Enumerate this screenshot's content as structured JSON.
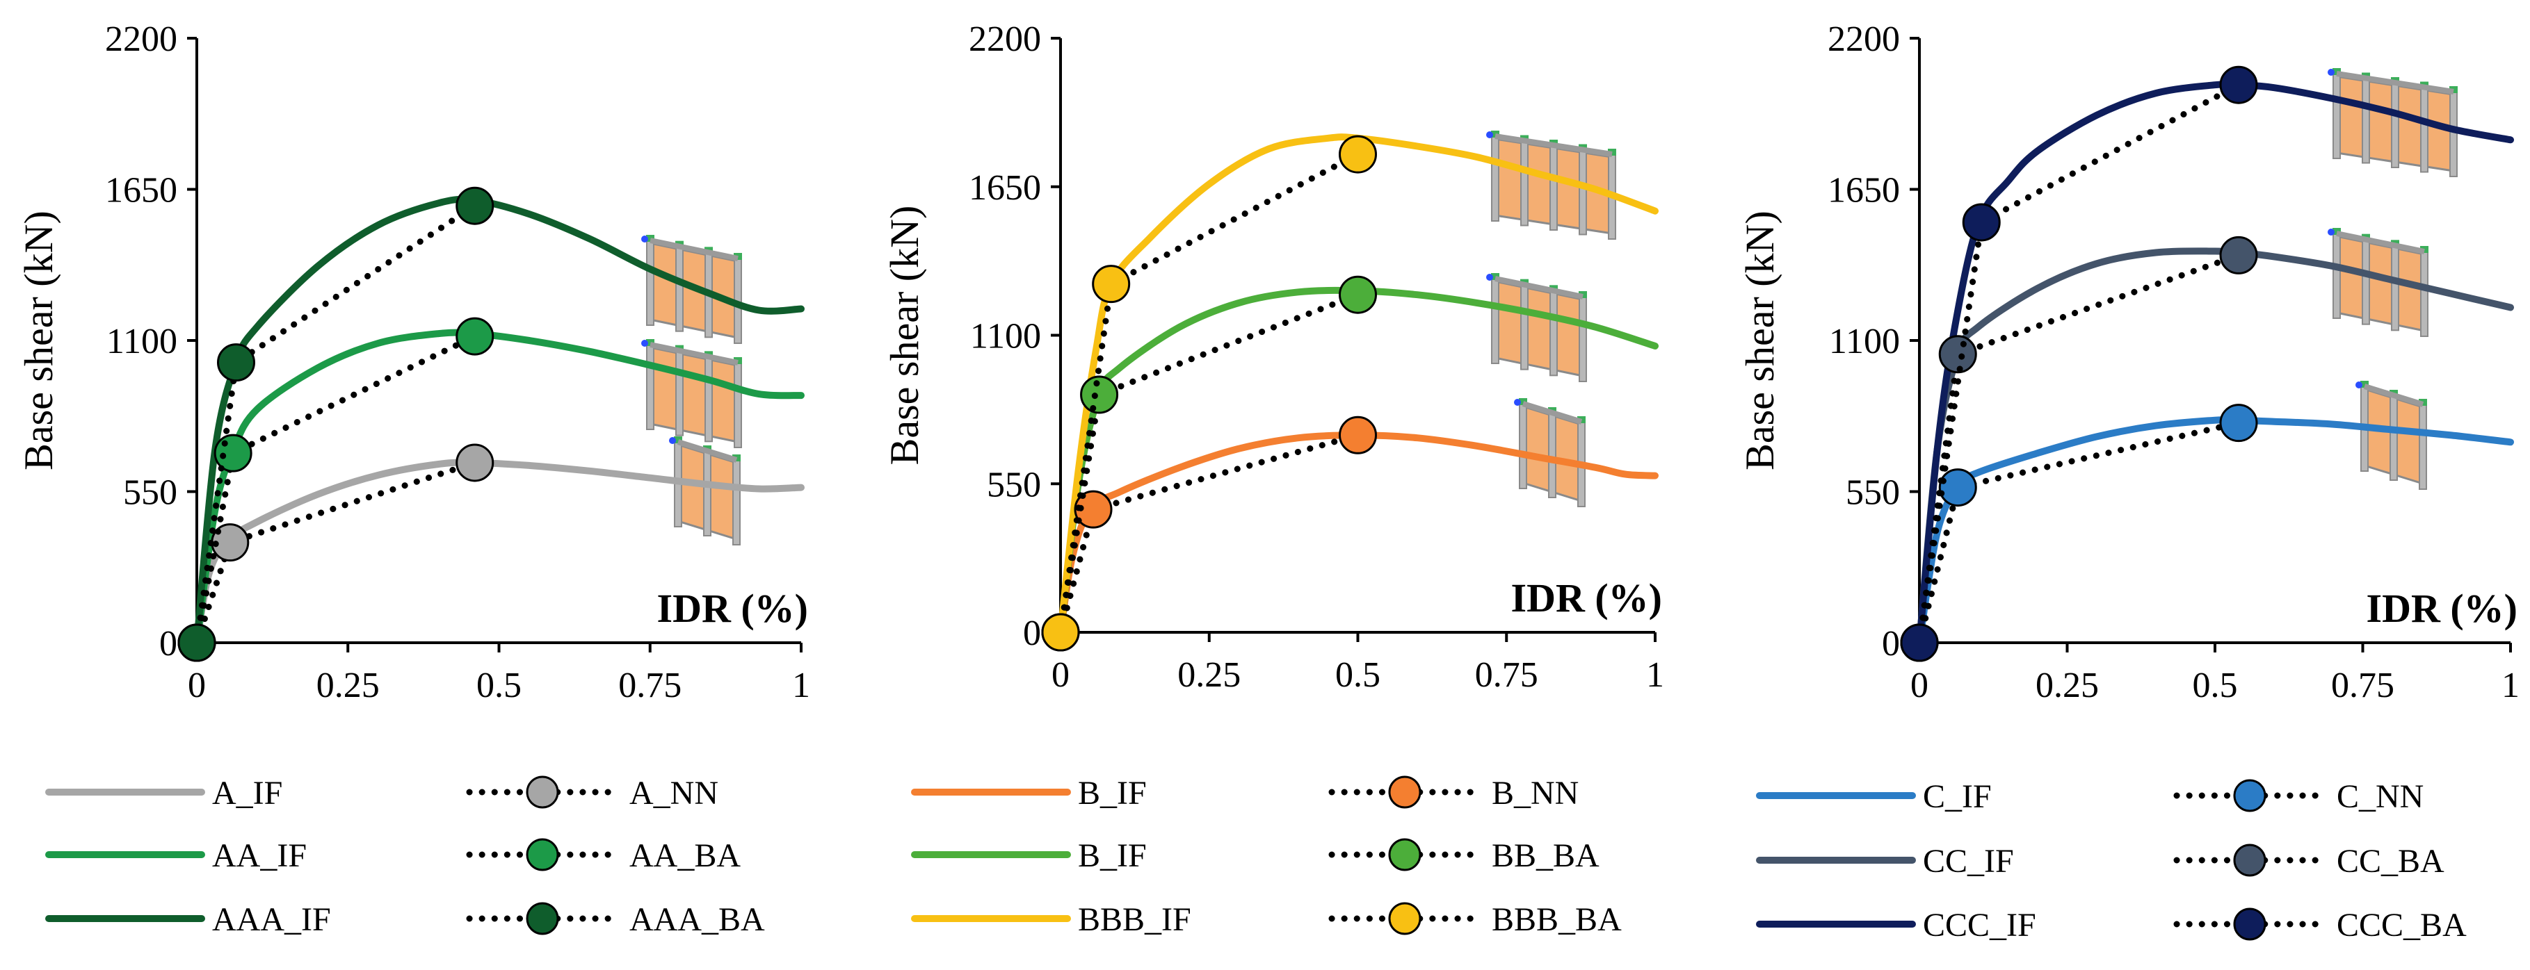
{
  "colors": {
    "A": "#a6a6a6",
    "AA": "#1c9a48",
    "AAA": "#0f5d2c",
    "B": "#f47f30",
    "BB": "#4cae3a",
    "BBB": "#f8c013",
    "C": "#2b7cc6",
    "CC": "#44546a",
    "CCC": "#0e1d5b",
    "wall": "#f4ae72",
    "frame": "#b8b8b8"
  },
  "chart_data": [
    {
      "type": "line",
      "ylabel": "Base shear (kN)",
      "xlabel": "IDR (%)",
      "xlim": [
        0,
        1
      ],
      "ylim": [
        0,
        2200
      ],
      "xticks": [
        "0",
        "0.25",
        "0.5",
        "0.75",
        "1"
      ],
      "yticks": [
        "0",
        "550",
        "1100",
        "1650",
        "2200"
      ],
      "series": [
        {
          "name": "A_IF",
          "style": "solid",
          "color": "A",
          "x": [
            0,
            0.02,
            0.05,
            0.1,
            0.2,
            0.3,
            0.4,
            0.46,
            0.55,
            0.65,
            0.75,
            0.85,
            0.93,
            1.0
          ],
          "y": [
            0,
            250,
            370,
            440,
            540,
            610,
            650,
            655,
            645,
            625,
            600,
            575,
            560,
            565
          ]
        },
        {
          "name": "A_NN",
          "style": "dotted",
          "color": "A",
          "x": [
            0,
            0.055,
            0.46
          ],
          "y": [
            0,
            365,
            655
          ]
        },
        {
          "name": "AA_IF",
          "style": "solid",
          "color": "AA",
          "x": [
            0,
            0.03,
            0.06,
            0.1,
            0.2,
            0.3,
            0.4,
            0.46,
            0.55,
            0.65,
            0.75,
            0.85,
            0.93,
            1.0
          ],
          "y": [
            0,
            480,
            700,
            850,
            1000,
            1090,
            1125,
            1125,
            1100,
            1060,
            1010,
            955,
            905,
            900
          ]
        },
        {
          "name": "AA_BA",
          "style": "dotted",
          "color": "AA",
          "x": [
            0,
            0.06,
            0.46
          ],
          "y": [
            0,
            690,
            1115
          ]
        },
        {
          "name": "AAA_IF",
          "style": "solid",
          "color": "AAA",
          "x": [
            0,
            0.03,
            0.065,
            0.1,
            0.2,
            0.3,
            0.4,
            0.46,
            0.55,
            0.65,
            0.75,
            0.85,
            0.93,
            1.0
          ],
          "y": [
            0,
            700,
            1020,
            1150,
            1370,
            1520,
            1600,
            1610,
            1560,
            1470,
            1360,
            1270,
            1210,
            1215
          ]
        },
        {
          "name": "AAA_BA",
          "style": "dotted",
          "color": "AAA",
          "x": [
            0,
            0.065,
            0.46
          ],
          "y": [
            0,
            1020,
            1590
          ]
        }
      ],
      "legend": [
        {
          "label": "A_IF",
          "style": "solid",
          "color": "A"
        },
        {
          "label": "A_NN",
          "style": "dotted",
          "color": "A"
        },
        {
          "label": "AA_IF",
          "style": "solid",
          "color": "AA"
        },
        {
          "label": "AA_BA",
          "style": "dotted",
          "color": "AA"
        },
        {
          "label": "AAA_IF",
          "style": "solid",
          "color": "AAA"
        },
        {
          "label": "AAA_BA",
          "style": "dotted",
          "color": "AAA"
        }
      ]
    },
    {
      "type": "line",
      "ylabel": "Base shear (kN)",
      "xlabel": "IDR (%)",
      "xlim": [
        0,
        1
      ],
      "ylim": [
        0,
        2200
      ],
      "xticks": [
        "0",
        "0.25",
        "0.5",
        "0.75",
        "1"
      ],
      "yticks": [
        "0",
        "550",
        "1100",
        "1650",
        "2200"
      ],
      "series": [
        {
          "name": "B_IF",
          "style": "solid",
          "color": "B",
          "x": [
            0,
            0.02,
            0.05,
            0.1,
            0.2,
            0.3,
            0.4,
            0.5,
            0.6,
            0.7,
            0.8,
            0.9,
            0.95,
            1.0
          ],
          "y": [
            0,
            280,
            455,
            520,
            610,
            680,
            720,
            730,
            720,
            690,
            650,
            610,
            585,
            580
          ]
        },
        {
          "name": "B_NN",
          "style": "dotted",
          "color": "B",
          "x": [
            0,
            0.055,
            0.5
          ],
          "y": [
            0,
            455,
            730
          ]
        },
        {
          "name": "B_IF",
          "style": "solid",
          "color": "BB",
          "x": [
            0,
            0.03,
            0.065,
            0.1,
            0.2,
            0.3,
            0.4,
            0.5,
            0.6,
            0.7,
            0.8,
            0.9,
            1.0
          ],
          "y": [
            0,
            550,
            880,
            980,
            1130,
            1220,
            1260,
            1265,
            1250,
            1220,
            1180,
            1130,
            1060
          ]
        },
        {
          "name": "BB_BA",
          "style": "dotted",
          "color": "BB",
          "x": [
            0,
            0.065,
            0.5
          ],
          "y": [
            0,
            880,
            1250
          ]
        },
        {
          "name": "BBB_IF",
          "style": "solid",
          "color": "BBB",
          "x": [
            0,
            0.03,
            0.06,
            0.085,
            0.15,
            0.25,
            0.35,
            0.45,
            0.5,
            0.6,
            0.7,
            0.8,
            0.9,
            1.0
          ],
          "y": [
            0,
            600,
            1050,
            1290,
            1460,
            1660,
            1790,
            1830,
            1830,
            1800,
            1760,
            1700,
            1640,
            1560
          ]
        },
        {
          "name": "BBB_BA",
          "style": "dotted",
          "color": "BBB",
          "x": [
            0,
            0.085,
            0.5
          ],
          "y": [
            0,
            1290,
            1770
          ]
        }
      ],
      "legend": [
        {
          "label": "B_IF",
          "style": "solid",
          "color": "B"
        },
        {
          "label": "B_NN",
          "style": "dotted",
          "color": "B"
        },
        {
          "label": "B_IF",
          "style": "solid",
          "color": "BB"
        },
        {
          "label": "BB_BA",
          "style": "dotted",
          "color": "BB"
        },
        {
          "label": "BBB_IF",
          "style": "solid",
          "color": "BBB"
        },
        {
          "label": "BBB_BA",
          "style": "dotted",
          "color": "BBB"
        }
      ]
    },
    {
      "type": "line",
      "ylabel": "Base shear (kN)",
      "xlabel": "IDR (%)",
      "xlim": [
        0,
        1
      ],
      "ylim": [
        0,
        2200
      ],
      "xticks": [
        "0",
        "0.25",
        "0.5",
        "0.75",
        "1"
      ],
      "yticks": [
        "0",
        "550",
        "1100",
        "1650",
        "2200"
      ],
      "series": [
        {
          "name": "C_IF",
          "style": "solid",
          "color": "C",
          "x": [
            0,
            0.03,
            0.065,
            0.1,
            0.2,
            0.3,
            0.4,
            0.5,
            0.54,
            0.6,
            0.7,
            0.8,
            0.9,
            1.0
          ],
          "y": [
            0,
            400,
            570,
            620,
            690,
            750,
            790,
            810,
            810,
            805,
            795,
            775,
            755,
            730
          ]
        },
        {
          "name": "C_NN",
          "style": "dotted",
          "color": "C",
          "x": [
            0,
            0.065,
            0.54
          ],
          "y": [
            0,
            565,
            800
          ]
        },
        {
          "name": "CC_IF",
          "style": "solid",
          "color": "CC",
          "x": [
            0,
            0.03,
            0.065,
            0.1,
            0.2,
            0.3,
            0.4,
            0.5,
            0.54,
            0.6,
            0.7,
            0.8,
            0.9,
            1.0
          ],
          "y": [
            0,
            700,
            1050,
            1150,
            1290,
            1380,
            1420,
            1425,
            1420,
            1405,
            1370,
            1320,
            1270,
            1220
          ]
        },
        {
          "name": "CC_BA",
          "style": "dotted",
          "color": "CC",
          "x": [
            0,
            0.065,
            0.54
          ],
          "y": [
            0,
            1050,
            1410
          ]
        },
        {
          "name": "CCC_IF",
          "style": "solid",
          "color": "CCC",
          "x": [
            0,
            0.03,
            0.06,
            0.1,
            0.15,
            0.2,
            0.3,
            0.4,
            0.5,
            0.54,
            0.6,
            0.7,
            0.8,
            0.9,
            1.0
          ],
          "y": [
            0,
            700,
            1150,
            1530,
            1680,
            1790,
            1920,
            2000,
            2030,
            2030,
            2020,
            1980,
            1930,
            1870,
            1830
          ]
        },
        {
          "name": "CCC_BA",
          "style": "dotted",
          "color": "CCC",
          "x": [
            0,
            0.105,
            0.54
          ],
          "y": [
            0,
            1530,
            2030
          ]
        }
      ],
      "legend": [
        {
          "label": "C_IF",
          "style": "solid",
          "color": "C"
        },
        {
          "label": "C_NN",
          "style": "dotted",
          "color": "C"
        },
        {
          "label": "CC_IF",
          "style": "solid",
          "color": "CC"
        },
        {
          "label": "CC_BA",
          "style": "dotted",
          "color": "CC"
        },
        {
          "label": "CCC_IF",
          "style": "solid",
          "color": "CCC"
        },
        {
          "label": "CCC_BA",
          "style": "dotted",
          "color": "CCC"
        }
      ]
    }
  ]
}
